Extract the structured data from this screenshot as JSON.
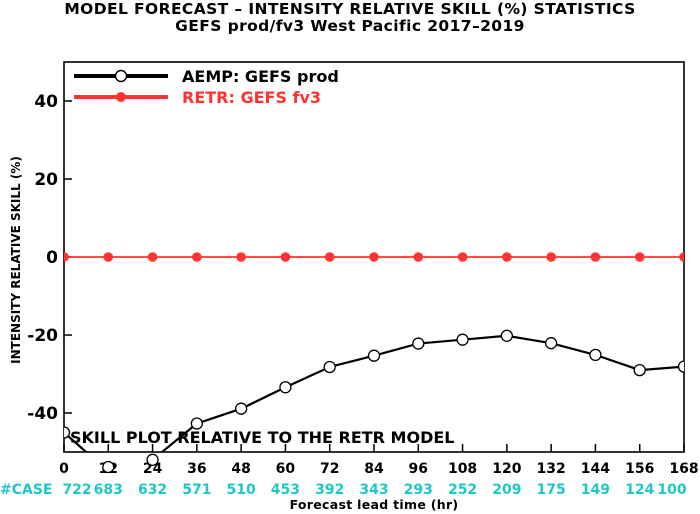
{
  "title_line1": "MODEL FORECAST – INTENSITY RELATIVE SKILL (%) STATISTICS",
  "title_line2": "GEFS prod/fv3 West Pacific 2017–2019",
  "annotation": "SKILL PLOT RELATIVE TO THE RETR MODEL",
  "case_label": "#CASE",
  "colors": {
    "aemp": "#000000",
    "retr": "#ff3333",
    "case": "#1ec8c8",
    "axis": "#000000"
  },
  "chart_data": {
    "type": "line",
    "title": "MODEL FORECAST – INTENSITY RELATIVE SKILL (%) STATISTICS",
    "subtitle": "GEFS prod/fv3 West Pacific 2017–2019",
    "xlabel": "Forecast lead time (hr)",
    "ylabel": "INTENSITY RELATIVE SKILL (%)",
    "x": [
      0,
      12,
      24,
      36,
      48,
      60,
      72,
      84,
      96,
      108,
      120,
      132,
      144,
      156,
      168
    ],
    "xticks": [
      "0",
      "12",
      "24",
      "36",
      "48",
      "60",
      "72",
      "84",
      "96",
      "108",
      "120",
      "132",
      "144",
      "156",
      "168"
    ],
    "yticks": [
      "-40",
      "-20",
      "0",
      "20",
      "40"
    ],
    "xlim": [
      0,
      168
    ],
    "ylim": [
      -50,
      50
    ],
    "grid": false,
    "legend_position": "top-left",
    "series": [
      {
        "name": "AEMP: GEFS prod",
        "color": "#000000",
        "marker": "open-circle",
        "values": [
          -45,
          -55,
          -52,
          -42.7,
          -38.9,
          -33.4,
          -28.2,
          -25.3,
          -22.2,
          -21.2,
          -20.2,
          -22.1,
          -25.1,
          -29,
          -28.1
        ]
      },
      {
        "name": "RETR: GEFS fv3",
        "color": "#ff3333",
        "marker": "filled-circle",
        "values": [
          0,
          0,
          0,
          0,
          0,
          0,
          0,
          0,
          0,
          0,
          0,
          0,
          0,
          0,
          0
        ]
      }
    ],
    "cases": [
      722,
      683,
      632,
      571,
      510,
      453,
      392,
      343,
      293,
      252,
      209,
      175,
      149,
      124,
      100
    ]
  }
}
